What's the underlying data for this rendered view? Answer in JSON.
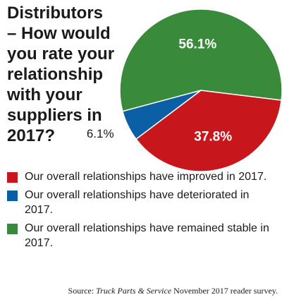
{
  "title_lines": [
    "Distributors",
    "– How would",
    "you rate your",
    "relationship",
    "with your",
    "suppliers in",
    "2017?"
  ],
  "chart_data": {
    "type": "pie",
    "title": "Distributors – How would you rate your relationship with your suppliers in 2017?",
    "slices": [
      {
        "label": "Our overall relationships have improved in 2017.",
        "value": 37.8,
        "display": "37.8%",
        "color": "#c8161d"
      },
      {
        "label": "Our overall relationships have deteriorated in 2017.",
        "value": 6.1,
        "display": "6.1%",
        "color": "#0b5fa5"
      },
      {
        "label": "Our overall relationships have remained stable in 2017.",
        "value": 56.1,
        "display": "56.1%",
        "color": "#3a8a3c"
      }
    ]
  },
  "legend": [
    {
      "text": "Our overall relationships have improved in 2017.",
      "color": "#c8161d"
    },
    {
      "text": "Our overall relationships have deteriorated in 2017.",
      "color": "#0b5fa5"
    },
    {
      "text": "Our overall relationships have remained stable in 2017.",
      "color": "#3a8a3c"
    }
  ],
  "source": {
    "prefix": "Source: ",
    "publication": "Truck Parts & Service",
    "suffix": " November 2017 reader survey."
  }
}
